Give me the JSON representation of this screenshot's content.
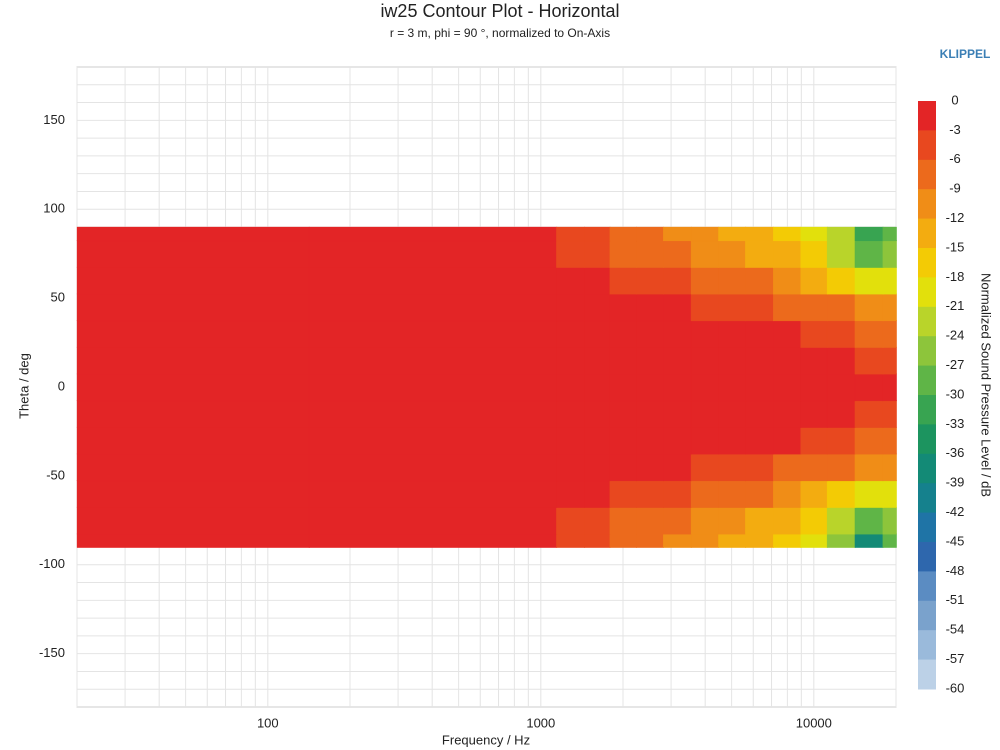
{
  "chart_data": {
    "type": "contour",
    "title": "iw25 Contour Plot - Horizontal",
    "subtitle": "r = 3 m, phi = 90 °, normalized to On-Axis",
    "brand": "KLIPPEL",
    "x_label": "Frequency / Hz",
    "y_label": "Theta / deg",
    "x_log": true,
    "x": [
      20,
      1000,
      1300,
      1600,
      2000,
      2500,
      3150,
      4000,
      5000,
      6300,
      8000,
      10000,
      12500,
      16000,
      20000
    ],
    "y": [
      -90,
      -75,
      -60,
      -45,
      -30,
      -15,
      0,
      15,
      30,
      45,
      60,
      75,
      90
    ],
    "z": [
      [
        0,
        -2,
        -4,
        -5,
        -7,
        -8,
        -10,
        -11,
        -13,
        -14,
        -16,
        -19,
        -24,
        -36,
        -28
      ],
      [
        0,
        -1,
        -3,
        -4,
        -6,
        -7,
        -8,
        -10,
        -11,
        -12,
        -14,
        -17,
        -21,
        -27,
        -24
      ],
      [
        0,
        0,
        -1,
        -2,
        -4,
        -5,
        -5,
        -7,
        -7,
        -8,
        -10,
        -12,
        -15,
        -20,
        -18
      ],
      [
        0,
        0,
        0,
        0,
        -1,
        -2,
        -2,
        -4,
        -4,
        -5,
        -6,
        -7,
        -8,
        -11,
        -10
      ],
      [
        0,
        0,
        0,
        0,
        0,
        0,
        0,
        0,
        0,
        -1,
        -2,
        -4,
        -5,
        -6,
        -7
      ],
      [
        0,
        0,
        0,
        0,
        0,
        0,
        0,
        0,
        0,
        0,
        0,
        0,
        -2,
        -3,
        -4
      ],
      [
        0,
        0,
        0,
        0,
        0,
        0,
        0,
        0,
        0,
        0,
        0,
        0,
        0,
        -1,
        -2
      ],
      [
        0,
        0,
        0,
        0,
        0,
        0,
        0,
        0,
        0,
        0,
        0,
        0,
        -2,
        -3,
        -4
      ],
      [
        0,
        0,
        0,
        0,
        0,
        0,
        0,
        0,
        0,
        -1,
        -2,
        -4,
        -5,
        -6,
        -7
      ],
      [
        0,
        0,
        0,
        0,
        -1,
        -2,
        -2,
        -4,
        -4,
        -5,
        -6,
        -7,
        -8,
        -11,
        -10
      ],
      [
        0,
        0,
        -1,
        -2,
        -4,
        -5,
        -5,
        -7,
        -7,
        -8,
        -10,
        -12,
        -15,
        -20,
        -18
      ],
      [
        0,
        -1,
        -3,
        -4,
        -6,
        -7,
        -8,
        -10,
        -11,
        -12,
        -14,
        -17,
        -21,
        -27,
        -24
      ],
      [
        0,
        -2,
        -4,
        -5,
        -7,
        -8,
        -10,
        -11,
        -13,
        -14,
        -16,
        -19,
        -23,
        -30,
        -27
      ]
    ],
    "xlim": [
      20,
      20000
    ],
    "ylim": [
      -180,
      180
    ],
    "xticks": [
      100,
      1000,
      10000
    ],
    "xticks_minor": [
      20,
      30,
      40,
      50,
      60,
      70,
      80,
      90,
      200,
      300,
      400,
      500,
      600,
      700,
      800,
      900,
      2000,
      3000,
      4000,
      5000,
      6000,
      7000,
      8000,
      9000,
      20000
    ],
    "yticks": [
      -150,
      -100,
      -50,
      0,
      50,
      100,
      150
    ],
    "yticks_minor": [
      -170,
      -160,
      -140,
      -130,
      -120,
      -110,
      -90,
      -80,
      -70,
      -60,
      -40,
      -30,
      -20,
      -10,
      10,
      20,
      30,
      40,
      60,
      70,
      80,
      90,
      110,
      120,
      130,
      140,
      160,
      170
    ],
    "grid": true,
    "colorbar": {
      "label": "Normalized Sound Pressure Level / dB",
      "ticks": [
        0,
        -3,
        -6,
        -9,
        -12,
        -15,
        -18,
        -21,
        -24,
        -27,
        -30,
        -33,
        -36,
        -39,
        -42,
        -45,
        -48,
        -51,
        -54,
        -57,
        -60
      ],
      "colors": [
        "#e32526",
        "#e8481f",
        "#ec6a1c",
        "#f08d17",
        "#f3ac10",
        "#f3cb05",
        "#e2e00c",
        "#b9d42a",
        "#8dc53b",
        "#5fb547",
        "#38a451",
        "#1c945f",
        "#138a76",
        "#15818d",
        "#1f74a6",
        "#2e67ad",
        "#5b8cc2",
        "#7aa2cc",
        "#9abadb",
        "#bcd1e7",
        "#d6e3ef"
      ]
    }
  }
}
